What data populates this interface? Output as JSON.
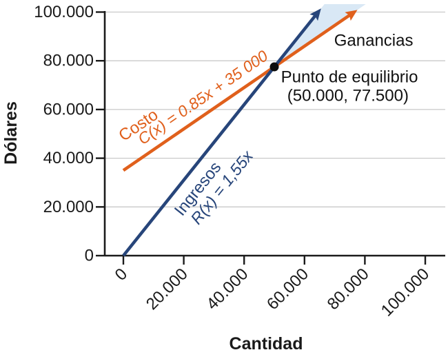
{
  "figure": {
    "background": "#ffffff",
    "description_labels": {
      "x_axis_title": "Cantidad",
      "y_axis_title": "Dólares"
    }
  },
  "chart_data": {
    "type": "line",
    "title": "",
    "xlabel": "Cantidad",
    "ylabel": "Dólares",
    "xlim": [
      0,
      100000
    ],
    "ylim": [
      0,
      100000
    ],
    "grid": "horizontal-only",
    "grid_color": "#c9c9c9",
    "axis_color": "#1a1a1a",
    "x_ticks": {
      "values": [
        0,
        20000,
        40000,
        60000,
        80000,
        100000
      ],
      "labels": [
        "0",
        "20.000",
        "40.000",
        "60.000",
        "80.000",
        "100.000"
      ],
      "label_rotation_deg": -45
    },
    "y_ticks": {
      "values": [
        0,
        20000,
        40000,
        60000,
        80000,
        100000
      ],
      "labels": [
        "0",
        "20.000",
        "40.000",
        "60.000",
        "80.000",
        "100.000"
      ]
    },
    "series": [
      {
        "id": "costo",
        "name": "Costo",
        "equation_label": "C(x) = 0.85x + 35 000",
        "slope": 0.85,
        "intercept": 35000,
        "color": "#E0601C",
        "arrow_end": true
      },
      {
        "id": "ingresos",
        "name": "Ingresos",
        "equation_label": "R(x) = 1,55x",
        "slope": 1.55,
        "intercept": 0,
        "color": "#27457A",
        "arrow_end": true
      }
    ],
    "break_even": {
      "x": 50000,
      "y": 77500,
      "dot_color": "#0d0d0d",
      "label_line1": "Punto de equilibrio",
      "label_line2": "(50.000, 77.500)"
    },
    "shaded_region": {
      "label": "Ganancias",
      "fill": "#D9E8F5",
      "from_x": 50000
    },
    "annotations": [
      {
        "id": "costo-name",
        "text": "Costo",
        "x": 5000,
        "y": 53500,
        "align_to_series": "costo",
        "color": "#E0601C",
        "italic": false,
        "size": 24
      },
      {
        "id": "costo-eq",
        "text": "C(x) = 0.85x + 35 000",
        "x": 26300,
        "y": 65000,
        "align_to_series": "costo",
        "color": "#E0601C",
        "italic": true,
        "size": 23
      },
      {
        "id": "ingresos-name",
        "text": "Ingresos",
        "x": 24700,
        "y": 27400,
        "align_to_series": "ingresos",
        "color": "#27457A",
        "italic": false,
        "size": 24
      },
      {
        "id": "ingresos-eq",
        "text": "R(x) = 1,55x",
        "x": 32600,
        "y": 28000,
        "align_to_series": "ingresos",
        "color": "#27457A",
        "italic": true,
        "size": 23.5
      },
      {
        "id": "ganancias",
        "text": "Ganancias",
        "x": 82900,
        "y": 88300,
        "align_to_series": null,
        "color": "#111111",
        "italic": false,
        "size": 24
      },
      {
        "id": "punto-linea-1",
        "text": "Punto de equilibrio",
        "x": 74900,
        "y": 73300,
        "align_to_series": null,
        "color": "#111111",
        "italic": false,
        "size": 24
      },
      {
        "id": "punto-linea-2",
        "text": "(50.000, 77.500)",
        "x": 74400,
        "y": 65600,
        "align_to_series": null,
        "color": "#111111",
        "italic": false,
        "size": 24
      }
    ]
  }
}
